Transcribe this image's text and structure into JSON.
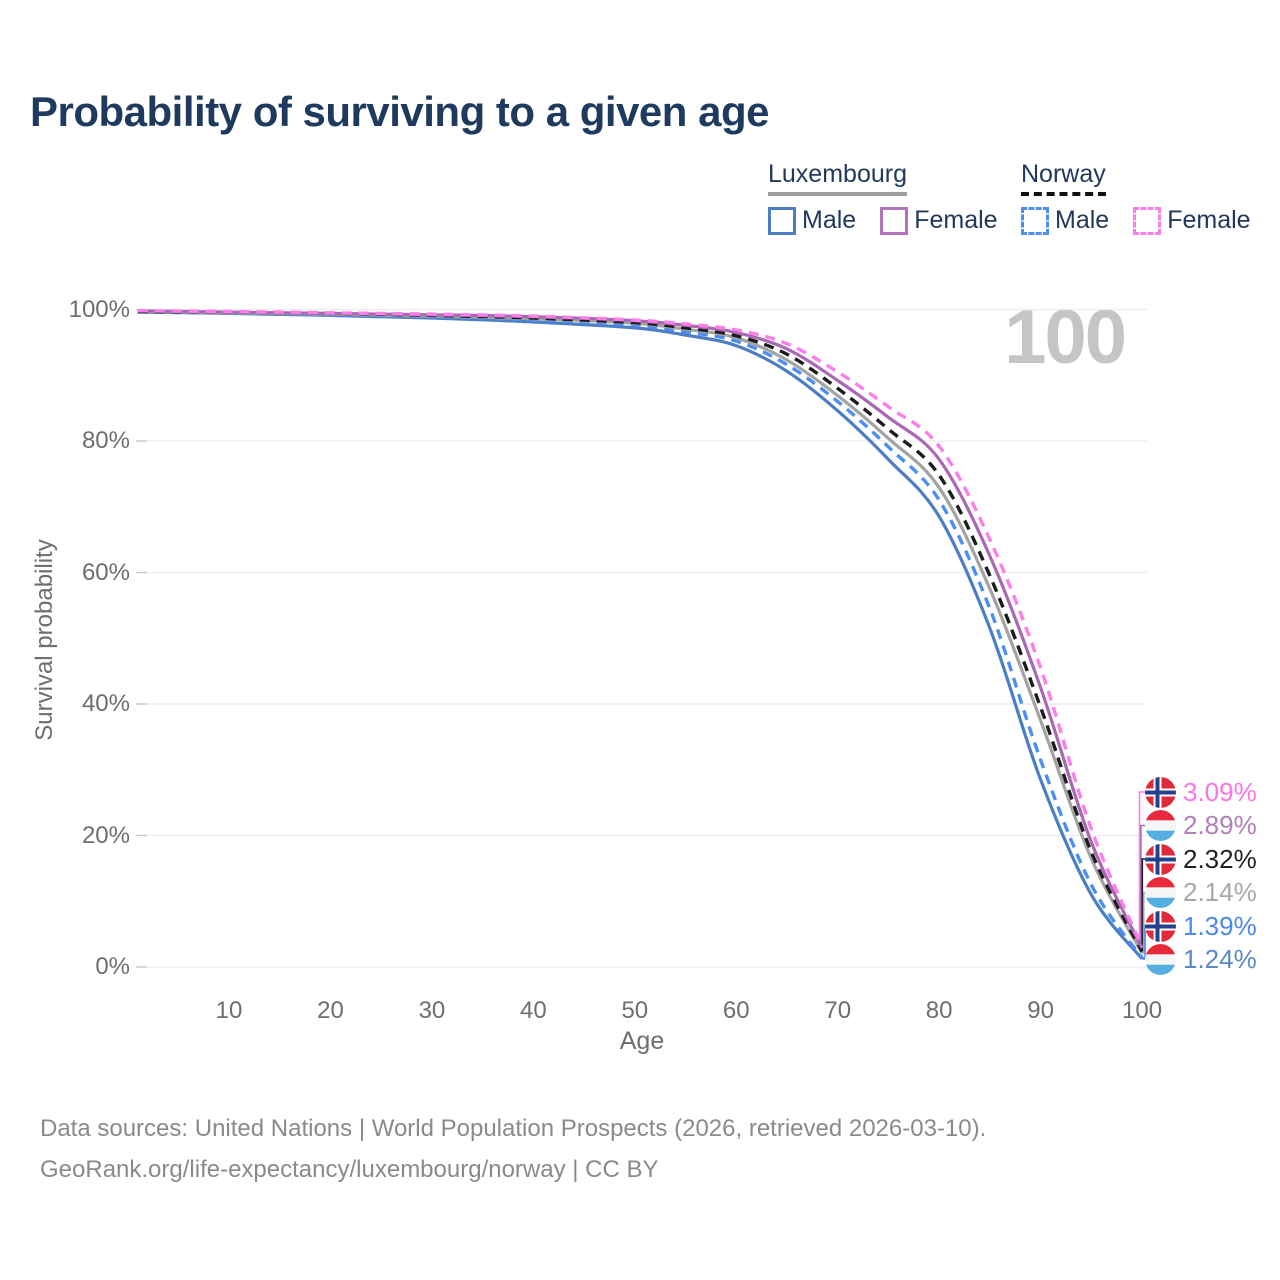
{
  "title": "Probability of surviving to a given age",
  "watermark_age": "100",
  "legend": {
    "groups": [
      {
        "label": "Luxembourg",
        "underline": "solid",
        "underline_color": "#9e9e9e",
        "items": [
          {
            "label": "Male",
            "color": "#4b7ec2",
            "dashed": false
          },
          {
            "label": "Female",
            "color": "#b273bd",
            "dashed": false
          }
        ]
      },
      {
        "label": "Norway",
        "underline": "dashed",
        "underline_color": "#111111",
        "items": [
          {
            "label": "Male",
            "color": "#4d8ef5",
            "dashed": true
          },
          {
            "label": "Female",
            "color": "#fc7ee8",
            "dashed": true
          }
        ]
      }
    ]
  },
  "chart_data": {
    "type": "line",
    "title": "Probability of surviving to a given age",
    "xlabel": "Age",
    "ylabel": "Survival probability",
    "xlim": [
      0,
      100
    ],
    "ylim": [
      0,
      100
    ],
    "x_ticks": [
      10,
      20,
      30,
      40,
      50,
      60,
      70,
      80,
      90,
      100
    ],
    "y_ticks": [
      {
        "value": 0,
        "label": "0%"
      },
      {
        "value": 20,
        "label": "20%"
      },
      {
        "value": 40,
        "label": "40%"
      },
      {
        "value": 60,
        "label": "60%"
      },
      {
        "value": 80,
        "label": "80%"
      },
      {
        "value": 100,
        "label": "100%"
      }
    ],
    "grid": "horizontal",
    "legend_position": "top-right",
    "x": [
      1,
      10,
      20,
      30,
      40,
      50,
      55,
      60,
      65,
      70,
      75,
      80,
      85,
      90,
      95,
      100
    ],
    "series": [
      {
        "name": "Norway Female",
        "country": "norway",
        "sex": "female",
        "style": "dashed",
        "color": "#fc7ee8",
        "label_color": "#fb74e4",
        "end_label": "3.09%",
        "values": [
          99.8,
          99.7,
          99.5,
          99.3,
          99.0,
          98.4,
          97.8,
          96.9,
          94.8,
          90.5,
          85.2,
          79.2,
          65.0,
          45.5,
          21.0,
          3.09
        ]
      },
      {
        "name": "Luxembourg Female",
        "country": "luxembourg",
        "sex": "female",
        "style": "solid",
        "color": "#aa68b4",
        "label_color": "#b27fb8",
        "end_label": "2.89%",
        "values": [
          99.8,
          99.6,
          99.4,
          99.2,
          98.9,
          98.3,
          97.6,
          96.5,
          94.0,
          89.2,
          83.6,
          77.2,
          62.5,
          42.5,
          19.0,
          2.89
        ]
      },
      {
        "name": "Norway Total",
        "country": "norway",
        "sex": "total",
        "style": "dashed",
        "color": "#1c1c1c",
        "label_color": "#222222",
        "end_label": "2.32%",
        "values": [
          99.7,
          99.6,
          99.4,
          99.1,
          98.7,
          98.0,
          97.2,
          96.0,
          93.2,
          88.0,
          81.8,
          74.8,
          59.5,
          39.5,
          17.5,
          2.32
        ]
      },
      {
        "name": "Luxembourg Total",
        "country": "luxembourg",
        "sex": "total",
        "style": "solid",
        "color": "#a3a3a3",
        "label_color": "#a8a8a8",
        "end_label": "2.14%",
        "values": [
          99.7,
          99.5,
          99.3,
          99.0,
          98.6,
          97.9,
          97.0,
          95.7,
          92.3,
          86.9,
          80.4,
          72.9,
          57.5,
          37.5,
          16.5,
          2.14
        ]
      },
      {
        "name": "Norway Male",
        "country": "norway",
        "sex": "male",
        "style": "dashed",
        "color": "#4d8ef5",
        "label_color": "#4b87ef",
        "end_label": "1.39%",
        "values": [
          99.7,
          99.5,
          99.2,
          98.9,
          98.4,
          97.6,
          96.6,
          95.2,
          91.6,
          86.0,
          79.1,
          71.0,
          54.5,
          31.5,
          12.5,
          1.39
        ]
      },
      {
        "name": "Luxembourg Male",
        "country": "luxembourg",
        "sex": "male",
        "style": "solid",
        "color": "#4b7ec2",
        "label_color": "#5d87c5",
        "end_label": "1.24%",
        "values": [
          99.6,
          99.4,
          99.1,
          98.7,
          98.1,
          97.2,
          96.1,
          94.5,
          90.6,
          84.6,
          77.2,
          68.5,
          51.5,
          28.5,
          11.0,
          1.24
        ]
      }
    ],
    "flag_colors": {
      "norway": {
        "red": "#DE2A39",
        "blue": "#26418C",
        "white": "#ffffff"
      },
      "luxembourg": {
        "red": "#E8283D",
        "white": "#F4F6F7",
        "blue": "#54AEE0"
      }
    }
  },
  "footer": {
    "line1": "Data sources: United Nations | World Population Prospects (2026, retrieved 2026-03-10).",
    "line2": "GeoRank.org/life-expectancy/luxembourg/norway | CC BY"
  }
}
